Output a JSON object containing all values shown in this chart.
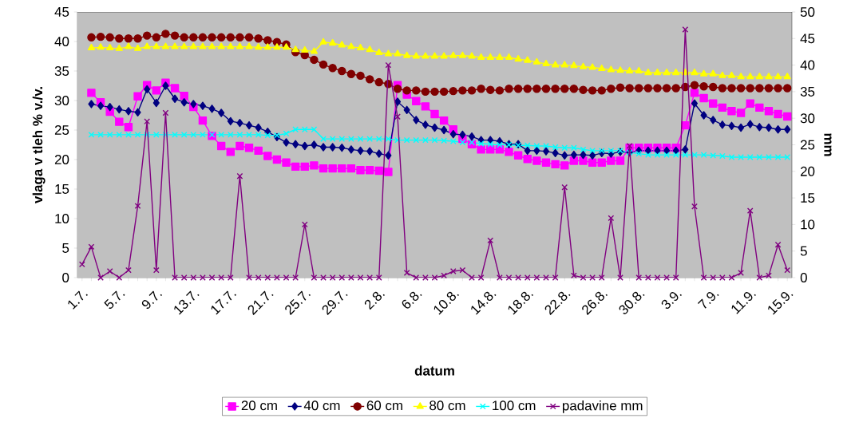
{
  "chart_data": {
    "type": "line",
    "xlabel": "datum",
    "ylabel": "vlaga v tleh % v./v.",
    "y2label": "mm",
    "categories": [
      "1.7.",
      null,
      null,
      null,
      "5.7.",
      null,
      null,
      null,
      "9.7.",
      null,
      null,
      null,
      "13.7.",
      null,
      null,
      null,
      "17.7.",
      null,
      null,
      null,
      "21.7.",
      null,
      null,
      null,
      "25.7.",
      null,
      null,
      null,
      "29.7.",
      null,
      null,
      null,
      "2.8.",
      null,
      null,
      null,
      "6.8.",
      null,
      null,
      null,
      "10.8.",
      null,
      null,
      null,
      "14.8.",
      null,
      null,
      null,
      "18.8.",
      null,
      null,
      null,
      "22.8.",
      null,
      null,
      null,
      "26.8.",
      null,
      null,
      null,
      "30.8.",
      null,
      null,
      null,
      "3.9.",
      null,
      null,
      null,
      "7.9.",
      null,
      null,
      null,
      "11.9.",
      null,
      null,
      null,
      "15.9."
    ],
    "ylim": [
      0,
      45
    ],
    "yticks": [
      0,
      5,
      10,
      15,
      20,
      25,
      30,
      35,
      40,
      45
    ],
    "y2lim": [
      0,
      50
    ],
    "y2ticks": [
      0,
      5,
      10,
      15,
      20,
      25,
      30,
      35,
      40,
      45,
      50
    ],
    "legend": "bottom",
    "grid": false,
    "line_style": "solid",
    "series": [
      {
        "name": "20 cm",
        "color": "#ff00ff",
        "marker": "square",
        "values": [
          null,
          31.3,
          29.7,
          28.1,
          26.4,
          25.5,
          30.7,
          32.6,
          31.7,
          33.0,
          32.1,
          30.8,
          28.9,
          26.6,
          24.0,
          22.3,
          21.3,
          22.3,
          22.0,
          21.5,
          20.6,
          20.0,
          19.5,
          18.8,
          18.8,
          19.0,
          18.5,
          18.5,
          18.5,
          18.5,
          18.2,
          18.2,
          18.1,
          17.9,
          32.6,
          31.0,
          29.9,
          29.0,
          27.7,
          26.6,
          25.1,
          23.5,
          22.6,
          21.7,
          21.7,
          21.7,
          21.3,
          20.7,
          20.1,
          19.8,
          19.5,
          19.2,
          19.0,
          19.8,
          19.8,
          19.5,
          19.5,
          19.8,
          19.8,
          22.0,
          22.0,
          22.0,
          22.0,
          22.0,
          22.0,
          25.8,
          31.3,
          30.4,
          29.5,
          28.8,
          28.2,
          27.9,
          29.5,
          28.8,
          28.2,
          27.7,
          27.3
        ]
      },
      {
        "name": "40 cm",
        "color": "#000080",
        "marker": "diamond",
        "values": [
          null,
          29.4,
          29.1,
          28.9,
          28.5,
          28.2,
          28.0,
          31.9,
          29.6,
          32.5,
          30.3,
          29.7,
          29.4,
          29.1,
          28.6,
          27.9,
          26.5,
          26.2,
          25.8,
          25.4,
          24.7,
          23.8,
          22.9,
          22.6,
          22.3,
          22.5,
          22.1,
          22.1,
          22.0,
          21.7,
          21.5,
          21.4,
          21.0,
          20.7,
          29.8,
          28.4,
          26.7,
          25.9,
          25.4,
          25.0,
          24.3,
          24.2,
          23.9,
          23.3,
          23.3,
          23.1,
          22.6,
          22.6,
          21.5,
          21.5,
          21.4,
          21.1,
          20.7,
          20.8,
          20.8,
          20.7,
          21.1,
          21.0,
          21.3,
          21.2,
          21.5,
          21.5,
          21.5,
          21.5,
          21.5,
          21.7,
          29.5,
          27.5,
          26.7,
          25.9,
          25.7,
          25.4,
          26.0,
          25.5,
          25.4,
          25.1,
          25.1
        ]
      },
      {
        "name": "60 cm",
        "color": "#800000",
        "marker": "circle",
        "values": [
          null,
          40.7,
          40.8,
          40.7,
          40.5,
          40.5,
          40.5,
          41.0,
          40.7,
          41.3,
          41.0,
          40.7,
          40.7,
          40.7,
          40.7,
          40.7,
          40.7,
          40.7,
          40.7,
          40.5,
          40.2,
          39.9,
          39.5,
          38.2,
          37.7,
          36.9,
          36.1,
          35.5,
          35.0,
          34.5,
          34.2,
          33.6,
          33.1,
          32.8,
          32.0,
          31.7,
          31.7,
          31.5,
          31.5,
          31.5,
          31.6,
          31.7,
          31.7,
          32.0,
          31.8,
          31.7,
          32.0,
          32.0,
          32.0,
          32.0,
          32.0,
          32.0,
          32.0,
          32.0,
          31.8,
          31.7,
          31.7,
          32.0,
          32.2,
          32.1,
          32.1,
          32.1,
          32.1,
          32.1,
          32.1,
          32.3,
          32.6,
          32.4,
          32.3,
          32.1,
          32.1,
          32.1,
          32.1,
          32.1,
          32.1,
          32.1,
          32.1
        ]
      },
      {
        "name": "80 cm",
        "color": "#ffff00",
        "marker": "triangle",
        "values": [
          null,
          38.9,
          39.0,
          38.9,
          38.8,
          39.1,
          38.8,
          39.1,
          39.1,
          39.1,
          39.1,
          39.1,
          39.1,
          39.1,
          39.1,
          39.1,
          39.1,
          39.1,
          39.1,
          39.0,
          39.0,
          39.0,
          39.0,
          38.6,
          38.5,
          38.3,
          39.9,
          39.7,
          39.4,
          39.1,
          38.9,
          38.6,
          38.1,
          37.9,
          37.9,
          37.6,
          37.5,
          37.5,
          37.5,
          37.5,
          37.6,
          37.6,
          37.5,
          37.3,
          37.3,
          37.3,
          37.3,
          37.0,
          36.8,
          36.5,
          36.2,
          36.0,
          36.0,
          35.9,
          35.7,
          35.6,
          35.4,
          35.2,
          35.1,
          35.0,
          35.0,
          34.7,
          34.7,
          34.7,
          34.7,
          34.7,
          34.7,
          34.5,
          34.5,
          34.2,
          34.2,
          34.0,
          34.0,
          34.0,
          34.0,
          34.0,
          34.0
        ]
      },
      {
        "name": "100 cm",
        "color": "#00ffff",
        "marker": "cross",
        "values": [
          null,
          24.2,
          24.2,
          24.2,
          24.2,
          24.2,
          24.2,
          24.2,
          24.2,
          24.2,
          24.2,
          24.2,
          24.2,
          24.2,
          24.2,
          24.2,
          24.2,
          24.2,
          24.2,
          24.2,
          24.1,
          24.1,
          24.4,
          25.1,
          25.1,
          25.1,
          23.5,
          23.5,
          23.5,
          23.5,
          23.5,
          23.5,
          23.5,
          23.5,
          23.3,
          23.3,
          23.3,
          23.3,
          23.3,
          23.2,
          23.1,
          22.9,
          22.9,
          22.7,
          22.6,
          22.5,
          22.5,
          22.4,
          22.4,
          22.3,
          22.3,
          22.1,
          22.0,
          22.0,
          21.7,
          21.5,
          21.5,
          21.5,
          21.5,
          21.2,
          21.0,
          20.8,
          20.8,
          20.8,
          20.8,
          20.8,
          20.8,
          20.8,
          20.7,
          20.6,
          20.4,
          20.4,
          20.4,
          20.4,
          20.4,
          20.4,
          20.4
        ]
      },
      {
        "name": "padavine mm",
        "color": "#800080",
        "marker": "cross",
        "axis": "y2",
        "values": [
          2.5,
          5.8,
          0,
          1.2,
          0,
          1.4,
          13.5,
          29.4,
          1.4,
          31.0,
          0,
          0,
          0,
          0,
          0,
          0,
          0,
          19.1,
          0,
          0,
          0,
          0,
          0,
          0,
          10.0,
          0,
          0,
          0,
          0,
          0,
          0,
          0,
          0,
          40.0,
          30.3,
          0.9,
          0,
          0,
          0,
          0.4,
          1.2,
          1.4,
          0,
          0,
          7.0,
          0,
          0,
          0,
          0,
          0,
          0,
          0,
          17.0,
          0.4,
          0,
          0,
          0,
          11.2,
          0,
          24.8,
          0,
          0,
          0,
          0,
          0,
          46.7,
          13.4,
          0,
          0,
          0,
          0,
          0.9,
          12.6,
          0,
          0.4,
          6.2,
          1.4
        ]
      }
    ]
  }
}
